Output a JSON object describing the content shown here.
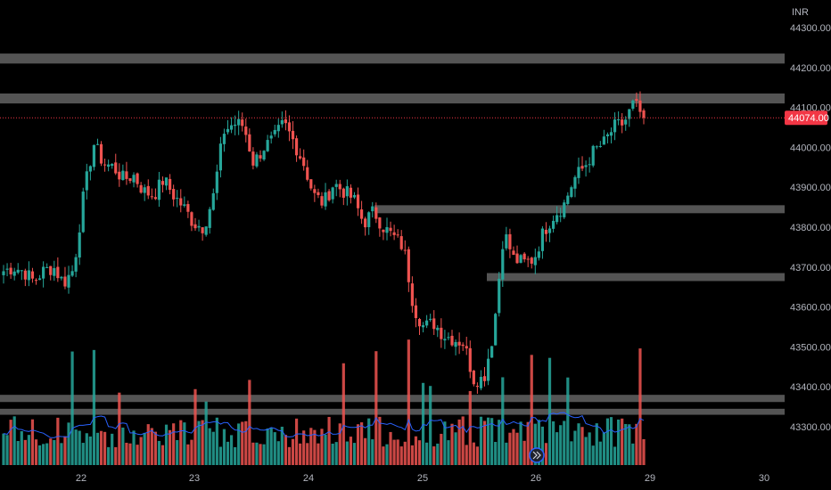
{
  "chart_data": {
    "type": "candlestick",
    "currency": "INR",
    "last_price": "44074.00",
    "y_axis": {
      "range": [
        43225,
        44335
      ],
      "ticks": [
        "44300.00",
        "44200.00",
        "44100.00",
        "44000.00",
        "43900.00",
        "43800.00",
        "43700.00",
        "43600.00",
        "43500.00",
        "43400.00",
        "43300.00"
      ]
    },
    "x_axis": {
      "day_labels": [
        "22",
        "23",
        "24",
        "25",
        "26",
        "29",
        "30"
      ]
    },
    "zones": [
      {
        "from": 44210,
        "to": 44235
      },
      {
        "from": 44110,
        "to": 44135
      },
      {
        "from": 43835,
        "to": 43855
      },
      {
        "from": 43665,
        "to": 43685
      },
      {
        "from": 43362,
        "to": 43380
      },
      {
        "from": 43330,
        "to": 43345
      }
    ],
    "volume_ma_color": "#2962ff",
    "colors": {
      "up": "#26a69a",
      "down": "#ef5350",
      "zone": "#5d5d5d",
      "last_price_line": "#f23645"
    },
    "ohlc_close_path": [
      43690,
      43700,
      43690,
      43665,
      43690,
      43700,
      43660,
      43695,
      43880,
      44010,
      43960,
      43950,
      43920,
      43930,
      43890,
      43880,
      43920,
      43880,
      43850,
      43810,
      43800,
      43880,
      44040,
      44060,
      44055,
      43960,
      44000,
      44020,
      44060,
      44015,
      43960,
      43880,
      43860,
      43910,
      43890,
      43870,
      43810,
      43840,
      43800,
      43775,
      43750,
      43600,
      43550,
      43560,
      43530,
      43520,
      43510,
      43420,
      43420,
      43540,
      43790,
      43720,
      43710,
      43720,
      43790,
      43830,
      43855,
      43920,
      43950,
      43990,
      44010,
      44050,
      44060,
      44110,
      44074
    ]
  }
}
